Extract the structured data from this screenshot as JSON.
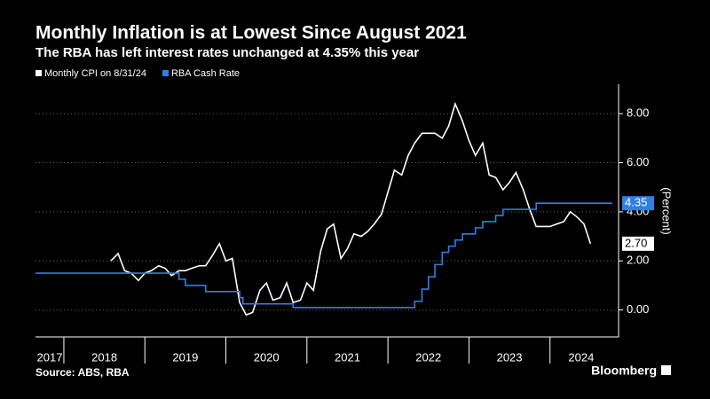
{
  "chart_data": {
    "type": "line",
    "title": "Monthly Inflation is at Lowest Since August 2021",
    "subtitle": "The RBA has left interest rates unchanged at 4.35% this year",
    "y_label": "(Percent)",
    "source": "Source: ABS, RBA",
    "brand": "Bloomberg",
    "xlim": [
      2017.65,
      2024.77
    ],
    "xticks": [
      2017,
      2018,
      2019,
      2020,
      2021,
      2022,
      2023,
      2024
    ],
    "ylim": [
      -1.1,
      9.2
    ],
    "yticks": [
      {
        "value": 0,
        "label": "0.00"
      },
      {
        "value": 2,
        "label": "2.00"
      },
      {
        "value": 4,
        "label": "4.00"
      },
      {
        "value": 6,
        "label": "6.00"
      },
      {
        "value": 8,
        "label": "8.00"
      }
    ],
    "grid": true,
    "series": [
      {
        "name": "Monthly CPI on 8/31/24",
        "color": "#ffffff",
        "end_label": "2.70",
        "x": [
          2018.58,
          2018.67,
          2018.75,
          2018.83,
          2018.92,
          2019.0,
          2019.08,
          2019.17,
          2019.25,
          2019.33,
          2019.42,
          2019.5,
          2019.58,
          2019.67,
          2019.75,
          2019.83,
          2019.92,
          2020.0,
          2020.08,
          2020.17,
          2020.25,
          2020.33,
          2020.42,
          2020.5,
          2020.58,
          2020.67,
          2020.75,
          2020.83,
          2020.92,
          2021.0,
          2021.08,
          2021.17,
          2021.25,
          2021.33,
          2021.42,
          2021.5,
          2021.58,
          2021.67,
          2021.75,
          2021.83,
          2021.92,
          2022.0,
          2022.08,
          2022.17,
          2022.25,
          2022.33,
          2022.42,
          2022.5,
          2022.58,
          2022.67,
          2022.75,
          2022.83,
          2022.92,
          2023.0,
          2023.08,
          2023.17,
          2023.25,
          2023.33,
          2023.42,
          2023.5,
          2023.58,
          2023.67,
          2023.75,
          2023.83,
          2023.92,
          2024.0,
          2024.08,
          2024.17,
          2024.25,
          2024.33,
          2024.42,
          2024.5
        ],
        "values": [
          2.0,
          2.3,
          1.6,
          1.5,
          1.2,
          1.5,
          1.6,
          1.8,
          1.7,
          1.4,
          1.6,
          1.6,
          1.7,
          1.8,
          1.8,
          2.2,
          2.7,
          2.0,
          2.1,
          0.3,
          -0.2,
          -0.1,
          0.8,
          1.1,
          0.4,
          0.5,
          1.1,
          0.3,
          0.4,
          1.1,
          0.8,
          2.4,
          3.3,
          3.5,
          2.1,
          2.5,
          3.1,
          3.0,
          3.2,
          3.5,
          3.9,
          4.8,
          5.7,
          5.5,
          6.3,
          6.8,
          7.2,
          7.2,
          7.2,
          7.0,
          7.5,
          8.4,
          7.7,
          6.9,
          6.3,
          6.8,
          5.5,
          5.4,
          4.9,
          5.2,
          5.6,
          4.9,
          4.1,
          3.4,
          3.4,
          3.4,
          3.5,
          3.6,
          4.0,
          3.8,
          3.5,
          2.7
        ]
      },
      {
        "name": "RBA Cash Rate",
        "color": "#2f80e4",
        "end_label": "4.35",
        "step": true,
        "x": [
          2017.65,
          2019.42,
          2019.5,
          2019.75,
          2020.17,
          2020.21,
          2020.83,
          2022.33,
          2022.42,
          2022.5,
          2022.58,
          2022.67,
          2022.75,
          2022.83,
          2022.92,
          2023.08,
          2023.17,
          2023.33,
          2023.42,
          2023.83,
          2024.77
        ],
        "values": [
          1.5,
          1.25,
          1.0,
          0.75,
          0.5,
          0.25,
          0.1,
          0.35,
          0.85,
          1.35,
          1.85,
          2.35,
          2.6,
          2.85,
          3.1,
          3.35,
          3.6,
          3.85,
          4.1,
          4.35,
          4.35
        ]
      }
    ]
  }
}
